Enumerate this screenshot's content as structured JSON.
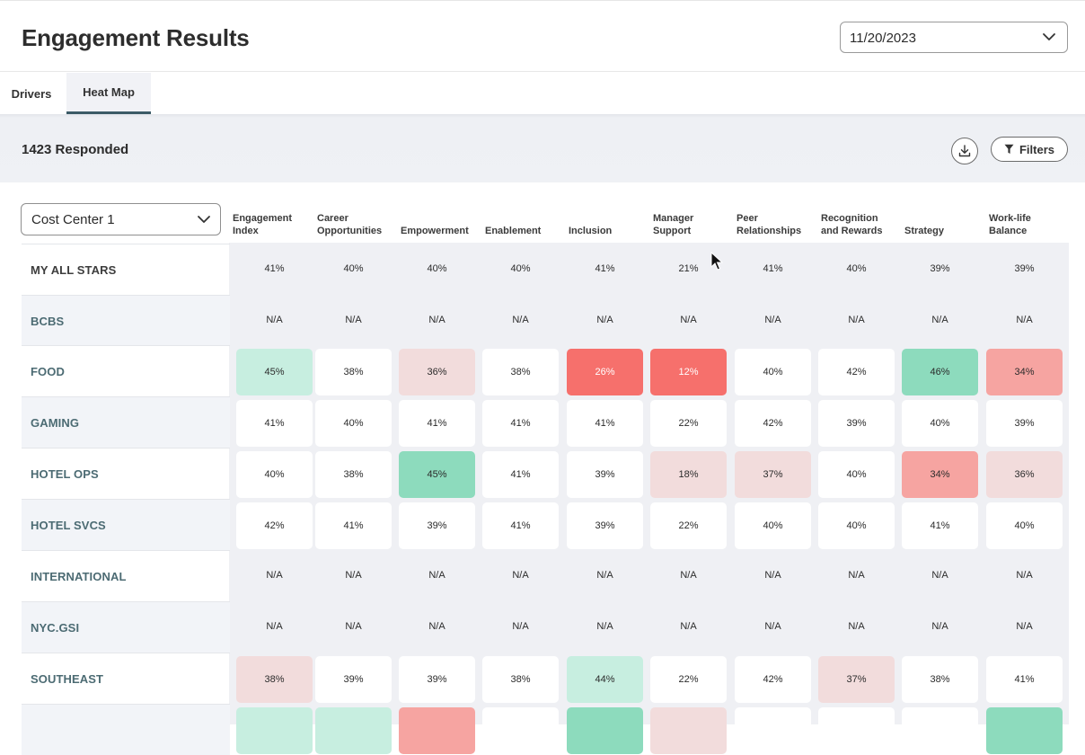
{
  "header": {
    "title": "Engagement Results",
    "date_value": "11/20/2023"
  },
  "tabs": [
    {
      "label": "Drivers",
      "active": false
    },
    {
      "label": "Heat Map",
      "active": true
    }
  ],
  "summary": {
    "responded": "1423 Responded",
    "filters_label": "Filters"
  },
  "group_select": {
    "value": "Cost Center 1"
  },
  "columns": [
    "Engagement Index",
    "Career Opportunities",
    "Empowerment",
    "Enablement",
    "Inclusion",
    "Manager Support",
    "Peer Relationships",
    "Recognition and Rewards",
    "Strategy",
    "Work-life Balance"
  ],
  "column_lines": [
    [
      "Engagement",
      "Index"
    ],
    [
      "Career",
      "Opportunities"
    ],
    [
      "",
      "Empowerment"
    ],
    [
      "",
      "Enablement"
    ],
    [
      "",
      "Inclusion"
    ],
    [
      "Manager",
      "Support"
    ],
    [
      "Peer",
      "Relationships"
    ],
    [
      "Recognition",
      "and Rewards"
    ],
    [
      "",
      "Strategy"
    ],
    [
      "Work-life",
      "Balance"
    ]
  ],
  "rows": [
    {
      "label": "MY ALL STARS",
      "values": [
        "41%",
        "40%",
        "40%",
        "40%",
        "41%",
        "21%",
        "41%",
        "40%",
        "39%",
        "39%"
      ],
      "styles": [
        "plain",
        "plain",
        "plain",
        "plain",
        "plain",
        "plain",
        "plain",
        "plain",
        "plain",
        "plain"
      ]
    },
    {
      "label": "BCBS",
      "values": [
        "N/A",
        "N/A",
        "N/A",
        "N/A",
        "N/A",
        "N/A",
        "N/A",
        "N/A",
        "N/A",
        "N/A"
      ],
      "styles": [
        "plain",
        "plain",
        "plain",
        "plain",
        "plain",
        "plain",
        "plain",
        "plain",
        "plain",
        "plain"
      ]
    },
    {
      "label": "FOOD",
      "values": [
        "45%",
        "38%",
        "36%",
        "38%",
        "26%",
        "12%",
        "40%",
        "42%",
        "46%",
        "34%"
      ],
      "styles": [
        "light-green",
        "box",
        "light-red",
        "box",
        "red",
        "red",
        "box",
        "box",
        "green",
        "mid-red"
      ]
    },
    {
      "label": "GAMING",
      "values": [
        "41%",
        "40%",
        "41%",
        "41%",
        "41%",
        "22%",
        "42%",
        "39%",
        "40%",
        "39%"
      ],
      "styles": [
        "box",
        "box",
        "box",
        "box",
        "box",
        "box",
        "box",
        "box",
        "box",
        "box"
      ]
    },
    {
      "label": "HOTEL OPS",
      "values": [
        "40%",
        "38%",
        "45%",
        "41%",
        "39%",
        "18%",
        "37%",
        "40%",
        "34%",
        "36%"
      ],
      "styles": [
        "box",
        "box",
        "green",
        "box",
        "box",
        "light-red",
        "light-red",
        "box",
        "mid-red",
        "light-red"
      ]
    },
    {
      "label": "HOTEL SVCS",
      "values": [
        "42%",
        "41%",
        "39%",
        "41%",
        "39%",
        "22%",
        "40%",
        "40%",
        "41%",
        "40%"
      ],
      "styles": [
        "box",
        "box",
        "box",
        "box",
        "box",
        "box",
        "box",
        "box",
        "box",
        "box"
      ]
    },
    {
      "label": "INTERNATIONAL",
      "values": [
        "N/A",
        "N/A",
        "N/A",
        "N/A",
        "N/A",
        "N/A",
        "N/A",
        "N/A",
        "N/A",
        "N/A"
      ],
      "styles": [
        "plain",
        "plain",
        "plain",
        "plain",
        "plain",
        "plain",
        "plain",
        "plain",
        "plain",
        "plain"
      ]
    },
    {
      "label": "NYC.GSI",
      "values": [
        "N/A",
        "N/A",
        "N/A",
        "N/A",
        "N/A",
        "N/A",
        "N/A",
        "N/A",
        "N/A",
        "N/A"
      ],
      "styles": [
        "plain",
        "plain",
        "plain",
        "plain",
        "plain",
        "plain",
        "plain",
        "plain",
        "plain",
        "plain"
      ]
    },
    {
      "label": "SOUTHEAST",
      "values": [
        "38%",
        "39%",
        "39%",
        "38%",
        "44%",
        "22%",
        "42%",
        "37%",
        "38%",
        "41%"
      ],
      "styles": [
        "light-red",
        "box",
        "box",
        "box",
        "light-green",
        "box",
        "box",
        "light-red",
        "box",
        "box"
      ]
    },
    {
      "label": "",
      "values": [
        "",
        "",
        "",
        "",
        "",
        "",
        "",
        "",
        "",
        ""
      ],
      "styles": [
        "light-green",
        "light-green",
        "mid-red",
        "box",
        "green",
        "light-red",
        "box",
        "box",
        "box",
        "green"
      ]
    }
  ],
  "colors": {
    "accent": "#3b5b66",
    "green": "#8ddbbd",
    "light_green": "#c7eee0",
    "red": "#f6706c",
    "mid_red": "#f6a4a1",
    "light_red": "#f2dcdc"
  },
  "icons": {
    "date_dropdown": "chevron-down-icon",
    "download": "download-icon",
    "filters": "filter-icon",
    "group_dropdown": "chevron-down-icon"
  }
}
